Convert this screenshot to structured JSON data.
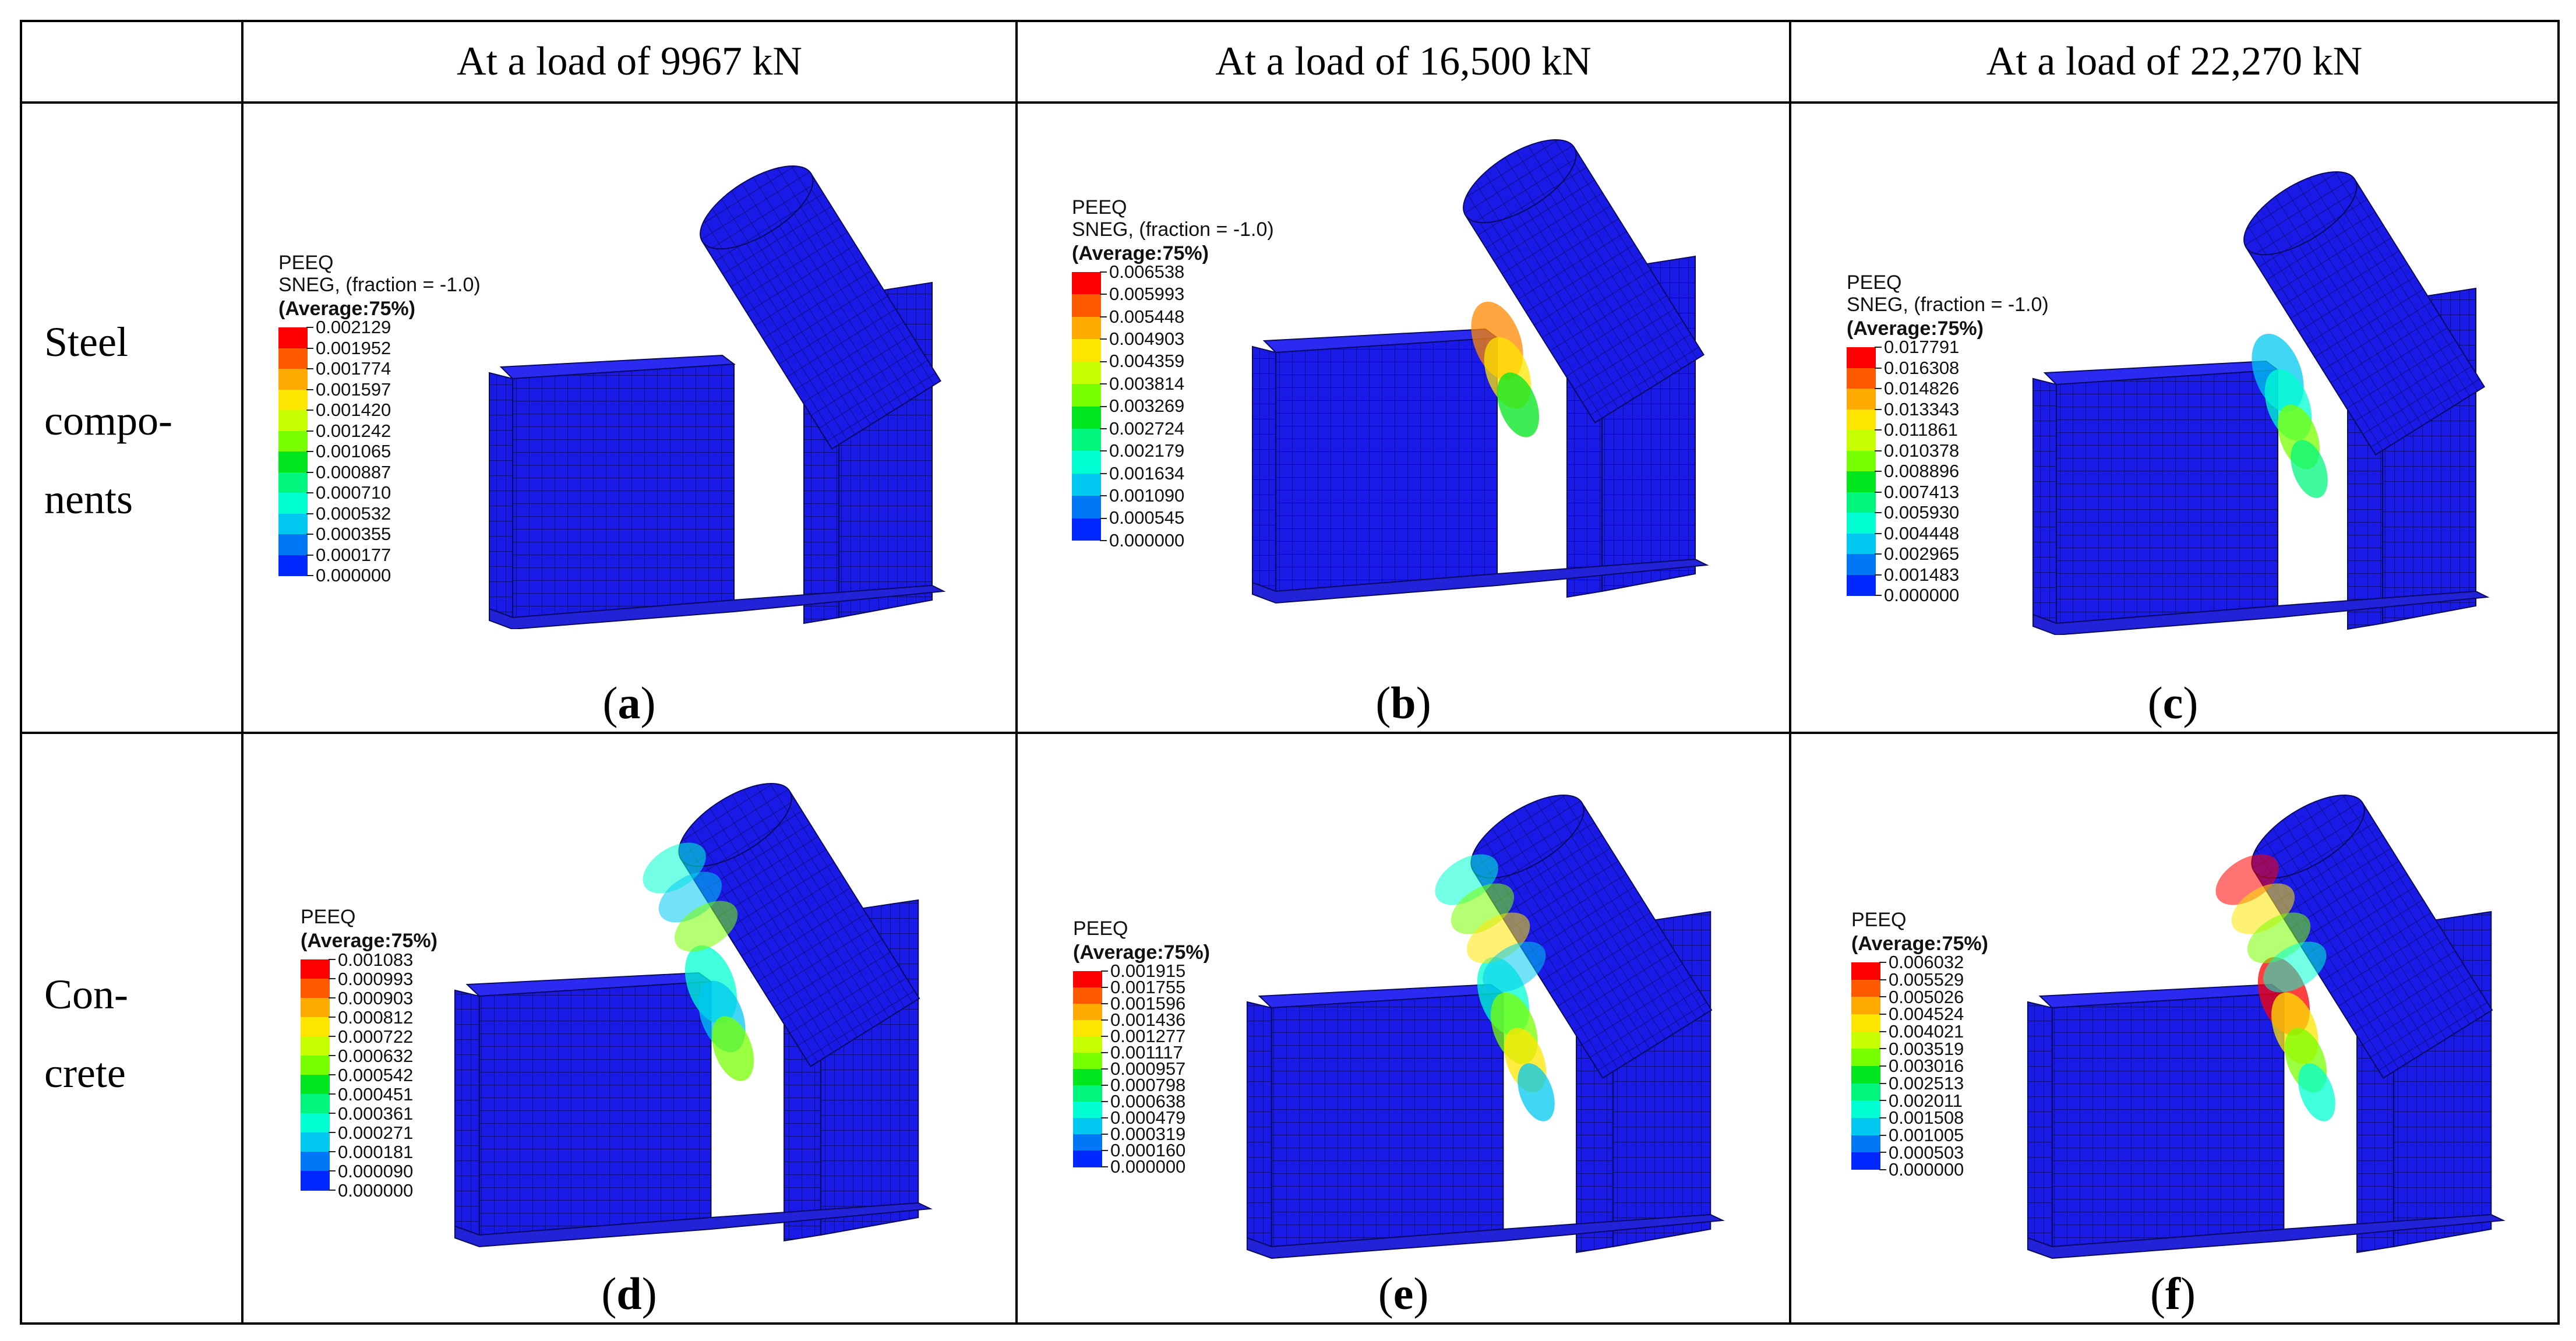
{
  "headers": {
    "col1": "At a load of 9967 kN",
    "col2": "At a load of 16,500 kN",
    "col3": "At a load of 22,270 kN"
  },
  "rows": {
    "steel_line1": "Steel",
    "steel_line2": "compo-",
    "steel_line3": "nents",
    "concrete_line1": "Con-",
    "concrete_line2": "crete"
  },
  "captions": {
    "a": "a",
    "b": "b",
    "c": "c",
    "d": "d",
    "e": "e",
    "f": "f",
    "open": "(",
    "close": ")"
  },
  "legend_text": {
    "peeq": "PEEQ",
    "sneg": "SNEG, (fraction = -1.0)",
    "avg": "(Average:75%)"
  },
  "legends": {
    "a": [
      "0.002129",
      "0.001952",
      "0.001774",
      "0.001597",
      "0.001420",
      "0.001242",
      "0.001065",
      "0.000887",
      "0.000710",
      "0.000532",
      "0.000355",
      "0.000177",
      "0.000000"
    ],
    "b": [
      "0.006538",
      "0.005993",
      "0.005448",
      "0.004903",
      "0.004359",
      "0.003814",
      "0.003269",
      "0.002724",
      "0.002179",
      "0.001634",
      "0.001090",
      "0.000545",
      "0.000000"
    ],
    "c": [
      "0.017791",
      "0.016308",
      "0.014826",
      "0.013343",
      "0.011861",
      "0.010378",
      "0.008896",
      "0.007413",
      "0.005930",
      "0.004448",
      "0.002965",
      "0.001483",
      "0.000000"
    ],
    "d": [
      "0.001083",
      "0.000993",
      "0.000903",
      "0.000812",
      "0.000722",
      "0.000632",
      "0.000542",
      "0.000451",
      "0.000361",
      "0.000271",
      "0.000181",
      "0.000090",
      "0.000000"
    ],
    "e": [
      "0.001915",
      "0.001755",
      "0.001596",
      "0.001436",
      "0.001277",
      "0.001117",
      "0.000957",
      "0.000798",
      "0.000638",
      "0.000479",
      "0.000319",
      "0.000160",
      "0.000000"
    ],
    "f": [
      "0.006032",
      "0.005529",
      "0.005026",
      "0.004524",
      "0.004021",
      "0.003519",
      "0.003016",
      "0.002513",
      "0.002011",
      "0.001508",
      "0.001005",
      "0.000503",
      "0.000000"
    ]
  },
  "colors": {
    "contour": [
      "#ff0000",
      "#ff5a00",
      "#ffaa00",
      "#ffe600",
      "#c8ff00",
      "#78ff00",
      "#00e61e",
      "#00f57d",
      "#00ffd2",
      "#00c8f0",
      "#0078f5",
      "#0028ff"
    ],
    "mesh_base": "#1a1ae6",
    "mesh_line": "#0a0a60"
  }
}
